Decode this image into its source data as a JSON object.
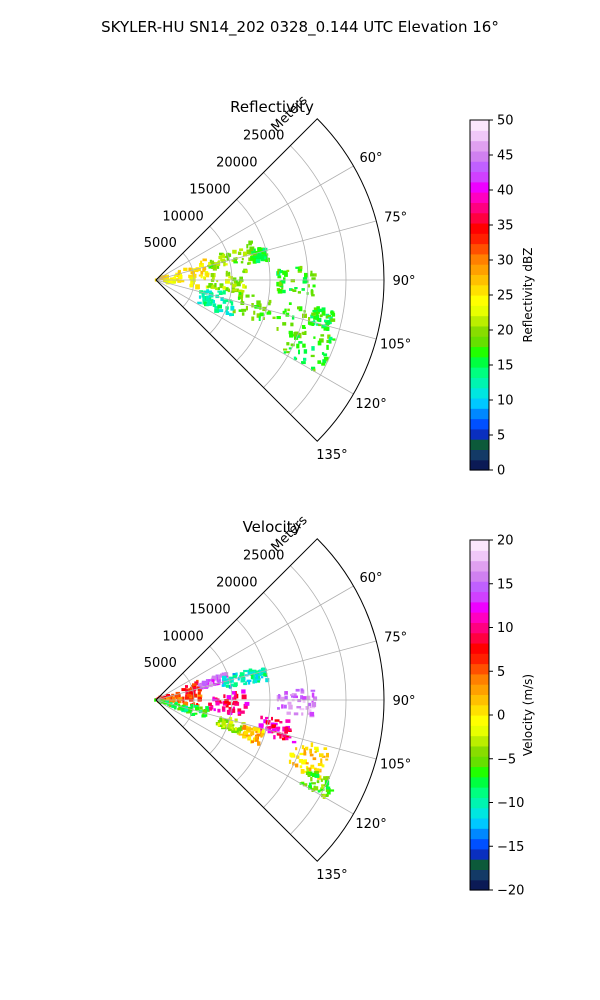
{
  "figure": {
    "suptitle": "SKYLER-HU  SN14_202  0328_0.144 UTC Elevation 16°"
  },
  "chart_data": [
    {
      "type": "polar-sector",
      "title": "Reflectivity",
      "radial_label": "Meters",
      "angle_ticks": [
        60,
        75,
        90,
        105,
        120,
        135
      ],
      "angle_tick_labels": [
        "60°",
        "75°",
        "90°",
        "105°",
        "120°",
        "135°"
      ],
      "angle_range_deg": [
        45,
        135
      ],
      "radial_ticks": [
        5000,
        10000,
        15000,
        20000,
        25000
      ],
      "radial_tick_labels": [
        "5000",
        "10000",
        "15000",
        "20000",
        "25000"
      ],
      "radial_max": 30000,
      "grid": true,
      "colorbar": {
        "label": "Reflectivity dBZ",
        "range": [
          0,
          50
        ],
        "ticks": [
          0,
          5,
          10,
          15,
          20,
          25,
          30,
          35,
          40,
          45,
          50
        ],
        "tick_labels": [
          "0",
          "5",
          "10",
          "15",
          "20",
          "25",
          "30",
          "35",
          "40",
          "45",
          "50"
        ],
        "colors": [
          "#0b1a55",
          "#133a66",
          "#0c5a3a",
          "#0a2fbf",
          "#0050ff",
          "#0088ff",
          "#00c8ff",
          "#00e6e0",
          "#00f5b0",
          "#00ff80",
          "#00ff40",
          "#22ff00",
          "#66e000",
          "#88dd00",
          "#bbee00",
          "#e8ff00",
          "#ffff00",
          "#ffe000",
          "#ffc000",
          "#ffa000",
          "#ff8000",
          "#ff5000",
          "#ff2000",
          "#ff0000",
          "#ff0040",
          "#ff0080",
          "#ff00c0",
          "#ee00ff",
          "#d040ff",
          "#c060ff",
          "#d080f0",
          "#e0a0f0",
          "#f0c8f8",
          "#fbe6fc"
        ]
      },
      "echo_regions": [
        {
          "az": [
            66,
            100
          ],
          "range": [
            0,
            7000
          ],
          "value": 25
        },
        {
          "az": [
            68,
            80
          ],
          "range": [
            7000,
            14000
          ],
          "value": 20
        },
        {
          "az": [
            84,
            99
          ],
          "range": [
            7000,
            12000
          ],
          "value": 20
        },
        {
          "az": [
            73,
            80
          ],
          "range": [
            13000,
            15000
          ],
          "value": 16
        },
        {
          "az": [
            85,
            96
          ],
          "range": [
            16000,
            21000
          ],
          "value": 17
        },
        {
          "az": [
            99,
            112
          ],
          "range": [
            11000,
            22000
          ],
          "value": 18
        },
        {
          "az": [
            108,
            120
          ],
          "range": [
            19000,
            25000
          ],
          "value": 17
        },
        {
          "az": [
            100,
            118
          ],
          "range": [
            6000,
            11000
          ],
          "value": 13
        },
        {
          "az": [
            100,
            106
          ],
          "range": [
            21000,
            24000
          ],
          "value": 16
        }
      ]
    },
    {
      "type": "polar-sector",
      "title": "Velocity",
      "radial_label": "Meters",
      "angle_ticks": [
        60,
        75,
        90,
        105,
        120,
        135
      ],
      "angle_tick_labels": [
        "60°",
        "75°",
        "90°",
        "105°",
        "120°",
        "135°"
      ],
      "angle_range_deg": [
        45,
        135
      ],
      "radial_ticks": [
        5000,
        10000,
        15000,
        20000,
        25000
      ],
      "radial_tick_labels": [
        "5000",
        "10000",
        "15000",
        "20000",
        "25000"
      ],
      "radial_max": 30000,
      "grid": true,
      "colorbar": {
        "label": "Velocity (m/s)",
        "range": [
          -20,
          20
        ],
        "ticks": [
          -20,
          -15,
          -10,
          -5,
          0,
          5,
          10,
          15,
          20
        ],
        "tick_labels": [
          "−20",
          "−15",
          "−10",
          "−5",
          "0",
          "5",
          "10",
          "15",
          "20"
        ],
        "colors": [
          "#0b1a55",
          "#133a66",
          "#0c5a3a",
          "#0a2fbf",
          "#0050ff",
          "#0088ff",
          "#00c8ff",
          "#00e6e0",
          "#00f5b0",
          "#00ff80",
          "#00ff40",
          "#22ff00",
          "#66e000",
          "#88dd00",
          "#bbee00",
          "#e8ff00",
          "#ffff00",
          "#ffe000",
          "#ffc000",
          "#ffa000",
          "#ff8000",
          "#ff5000",
          "#ff2000",
          "#ff0000",
          "#ff0040",
          "#ff0080",
          "#ff00c0",
          "#ee00ff",
          "#d040ff",
          "#c060ff",
          "#d080f0",
          "#e0a0f0",
          "#f0c8f8",
          "#fbe6fc"
        ]
      },
      "echo_regions": [
        {
          "az": [
            66,
            82
          ],
          "range": [
            0,
            6000
          ],
          "value": 7
        },
        {
          "az": [
            82,
            98
          ],
          "range": [
            0,
            6000
          ],
          "value": 5
        },
        {
          "az": [
            98,
            112
          ],
          "range": [
            0,
            7000
          ],
          "value": -7
        },
        {
          "az": [
            68,
            76
          ],
          "range": [
            6000,
            10000
          ],
          "value": 15
        },
        {
          "az": [
            72,
            80
          ],
          "range": [
            9000,
            14000
          ],
          "value": -11
        },
        {
          "az": [
            84,
            100
          ],
          "range": [
            7000,
            12000
          ],
          "value": 10
        },
        {
          "az": [
            74,
            80
          ],
          "range": [
            13000,
            15000
          ],
          "value": -10
        },
        {
          "az": [
            86,
            96
          ],
          "range": [
            16000,
            21000
          ],
          "value": 16
        },
        {
          "az": [
            99,
            108
          ],
          "range": [
            14000,
            19000
          ],
          "value": 10
        },
        {
          "az": [
            106,
            116
          ],
          "range": [
            19000,
            24000
          ],
          "value": 1
        },
        {
          "az": [
            114,
            120
          ],
          "range": [
            22000,
            26000
          ],
          "value": -5
        },
        {
          "az": [
            104,
            112
          ],
          "range": [
            8000,
            12000
          ],
          "value": -3
        },
        {
          "az": [
            106,
            114
          ],
          "range": [
            12000,
            15000
          ],
          "value": 2
        }
      ]
    }
  ]
}
